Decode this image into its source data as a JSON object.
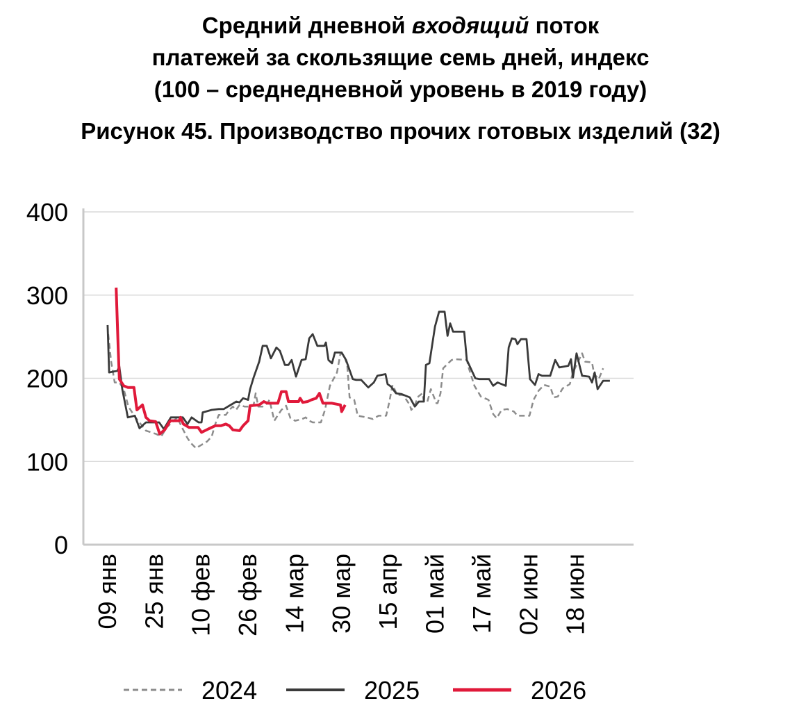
{
  "chart_data": {
    "type": "line",
    "title_lines": [
      "Средний дневной входящий поток",
      "платежей за скользящие семь дней, индекс",
      "(100 – среднедневной уровень в 2019 году)"
    ],
    "title_italic_word": "входящий",
    "subtitle": "Рисунок 45. Производство прочих готовых изделий (32)",
    "xlabel": "",
    "ylabel": "",
    "x_unit": "days since 09 янв",
    "xlim": [
      -8.3,
      179.8
    ],
    "ylim": [
      0,
      400
    ],
    "yticks": [
      0,
      100,
      200,
      300,
      400
    ],
    "xticks": [
      {
        "day": 0,
        "label": "09 янв"
      },
      {
        "day": 16,
        "label": "25 янв"
      },
      {
        "day": 32,
        "label": "10 фев"
      },
      {
        "day": 48,
        "label": "26 фев"
      },
      {
        "day": 64,
        "label": "14 мар"
      },
      {
        "day": 80,
        "label": "30 мар"
      },
      {
        "day": 96,
        "label": "15 апр"
      },
      {
        "day": 112,
        "label": "01 май"
      },
      {
        "day": 128,
        "label": "17 май"
      },
      {
        "day": 144,
        "label": "02 июн"
      },
      {
        "day": 160,
        "label": "18 июн"
      }
    ],
    "grid": true,
    "legend_position": "bottom",
    "series": [
      {
        "name": "2024",
        "color": "#8c8c8c",
        "style": "dashed",
        "x": [
          0.2,
          1.2,
          2.4,
          4,
          5.5,
          7.1,
          9.5,
          13.1,
          16.6,
          18.3,
          20.2,
          22.6,
          23.8,
          25.4,
          27.3,
          28.5,
          30.2,
          32.1,
          34,
          35.6,
          36.8,
          38,
          40.4,
          41.6,
          42.8,
          43.9,
          45.1,
          46.8,
          49.2,
          49.9,
          50.6,
          51.5,
          53,
          54.6,
          55.3,
          57,
          57.7,
          59.4,
          61,
          62.5,
          64.1,
          66.5,
          67.7,
          68.9,
          70.1,
          72.9,
          74.3,
          76,
          78.4,
          79.6,
          80.8,
          81.9,
          82.7,
          84.3,
          85.5,
          88.6,
          90.7,
          92.6,
          95.2,
          96.2,
          97.4,
          99,
          101,
          103.3,
          103.8,
          104.8,
          106.2,
          107.6,
          108.1,
          109.3,
          110.5,
          112.4,
          112.8,
          113.8,
          114.7,
          116.4,
          117.6,
          118.8,
          122.8,
          123.5,
          125.4,
          127.6,
          130.2,
          131.8,
          133,
          134.7,
          136.6,
          138.9,
          140.1,
          144.2,
          145.6,
          147.3,
          149.2,
          151.3,
          152.5,
          153.9,
          155.6,
          158,
          159.1,
          160.3,
          162.2,
          163.2,
          165.6,
          166.3,
          167.9,
          169.4
        ],
        "y": [
          253,
          220,
          195,
          195,
          187,
          166,
          153,
          137,
          133,
          130,
          141,
          149,
          153,
          141,
          128,
          122,
          116,
          120,
          124,
          130,
          145,
          156,
          156,
          162,
          166,
          162,
          168,
          166,
          166,
          168,
          182,
          166,
          166,
          170,
          174,
          149,
          153,
          162,
          167,
          152,
          149,
          151,
          153,
          149,
          147,
          147,
          162,
          191,
          207,
          230,
          228,
          216,
          177,
          174,
          155,
          153,
          151,
          155,
          155,
          170,
          192,
          180,
          180,
          168,
          162,
          166,
          178,
          182,
          172,
          172,
          187,
          170,
          170,
          182,
          212,
          218,
          222,
          223,
          222,
          212,
          191,
          178,
          174,
          157,
          152,
          162,
          163,
          160,
          155,
          155,
          174,
          185,
          192,
          190,
          177,
          178,
          188,
          193,
          207,
          216,
          230,
          220,
          219,
          205,
          199,
          212
        ]
      },
      {
        "name": "2025",
        "color": "#3a3a3a",
        "style": "solid",
        "x": [
          0,
          0.5,
          3.3,
          4,
          5,
          6.4,
          6.9,
          9.3,
          10.9,
          13.1,
          17.6,
          19.2,
          21.6,
          25.7,
          27.3,
          28.7,
          31.1,
          32.1,
          32.5,
          35.6,
          38,
          39.7,
          41.6,
          44,
          45.1,
          46.3,
          48,
          48.7,
          49.9,
          51.8,
          53,
          54.4,
          55.8,
          57.7,
          58.9,
          60.6,
          61.8,
          62.9,
          64.4,
          66.3,
          67.7,
          68.9,
          70.1,
          71.7,
          74.1,
          74.6,
          75.5,
          76.7,
          77.7,
          80,
          81.5,
          83.8,
          85,
          86.7,
          89.1,
          91,
          92.2,
          95,
          95.7,
          96.9,
          98.6,
          100.5,
          103.3,
          105,
          106.4,
          108.1,
          108.8,
          110,
          111.9,
          113.3,
          115.2,
          116.2,
          117.1,
          118.1,
          121.9,
          122.8,
          125.7,
          127.1,
          130.4,
          131.8,
          133.3,
          136.1,
          137.1,
          138.2,
          139.4,
          140.1,
          141.3,
          143.2,
          144.4,
          146.1,
          147.3,
          148.5,
          151.3,
          153,
          154.4,
          157.5,
          158.4,
          159.1,
          160.3,
          162.2,
          164.6,
          165.6,
          166.5,
          167.5,
          169.4,
          171.7
        ],
        "y": [
          264,
          207,
          209,
          214,
          187,
          162,
          153,
          155,
          140,
          147,
          147,
          139,
          153,
          153,
          145,
          153,
          147,
          147,
          159,
          162,
          163,
          163,
          167,
          172,
          171,
          176,
          174,
          187,
          201,
          220,
          239,
          239,
          224,
          237,
          233,
          216,
          216,
          222,
          202,
          222,
          223,
          248,
          253,
          239,
          239,
          243,
          222,
          218,
          231,
          231,
          222,
          199,
          198,
          198,
          189,
          195,
          203,
          205,
          193,
          190,
          182,
          181,
          177,
          166,
          172,
          172,
          216,
          218,
          262,
          280,
          280,
          251,
          266,
          256,
          256,
          222,
          200,
          199,
          199,
          191,
          195,
          191,
          237,
          248,
          247,
          241,
          247,
          247,
          199,
          192,
          205,
          203,
          203,
          222,
          213,
          215,
          223,
          201,
          230,
          203,
          202,
          195,
          207,
          187,
          197,
          197
        ]
      },
      {
        "name": "2026",
        "color": "#e0193a",
        "style": "solid-thick",
        "x": [
          2.9,
          3.6,
          4,
          5.5,
          6.9,
          9,
          10,
          11.9,
          13.1,
          14.3,
          16.4,
          17.8,
          19.5,
          21.4,
          24.5,
          24.9,
          25.9,
          27.8,
          30.9,
          32.1,
          34.4,
          36.8,
          38.7,
          40.4,
          41.6,
          42.8,
          45.1,
          46.3,
          48,
          48.7,
          51.8,
          53.4,
          54.6,
          58.2,
          59.4,
          61,
          61.8,
          65.3,
          65.8,
          66.7,
          68.4,
          69.6,
          71.3,
          72.4,
          73.6,
          76.7,
          79.6,
          80,
          81.2
        ],
        "y": [
          309,
          237,
          199,
          191,
          189,
          189,
          162,
          168,
          153,
          149,
          148,
          133,
          138,
          149,
          149,
          153,
          145,
          141,
          141,
          135,
          139,
          143,
          143,
          145,
          143,
          138,
          137,
          143,
          149,
          167,
          168,
          172,
          170,
          170,
          184,
          184,
          172,
          172,
          176,
          171,
          172,
          174,
          176,
          182,
          170,
          170,
          168,
          160,
          168
        ]
      }
    ]
  }
}
